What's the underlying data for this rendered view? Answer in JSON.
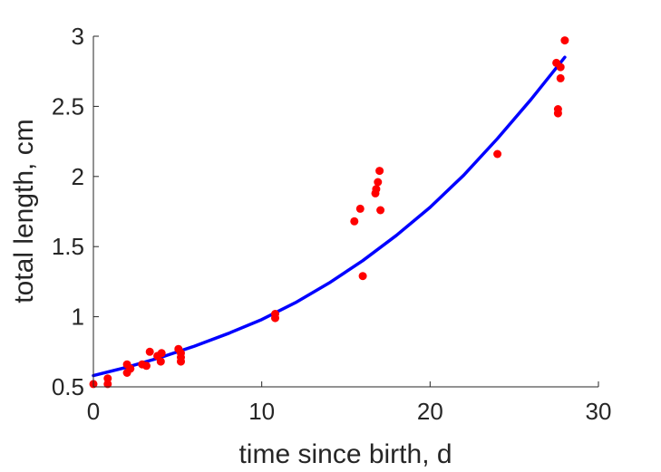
{
  "chart_data": {
    "type": "scatter",
    "title": "",
    "xlabel": "time since birth, d",
    "ylabel": "total length, cm",
    "xlim": [
      0,
      30
    ],
    "ylim": [
      0.5,
      3
    ],
    "xticks": [
      0,
      10,
      20,
      30
    ],
    "xtick_labels": [
      "0",
      "10",
      "20",
      "30"
    ],
    "yticks": [
      0.5,
      1,
      1.5,
      2,
      2.5,
      3
    ],
    "ytick_labels": [
      "0.5",
      "1",
      "1.5",
      "2",
      "2.5",
      "3"
    ],
    "grid": false,
    "legend": "none",
    "series": [
      {
        "kind": "scatter",
        "color": "#ff0000",
        "points": [
          [
            0.0,
            0.52
          ],
          [
            0.85,
            0.52
          ],
          [
            0.85,
            0.56
          ],
          [
            2.0,
            0.6
          ],
          [
            2.0,
            0.66
          ],
          [
            2.2,
            0.63
          ],
          [
            2.9,
            0.66
          ],
          [
            3.15,
            0.65
          ],
          [
            3.35,
            0.75
          ],
          [
            3.8,
            0.72
          ],
          [
            4.0,
            0.68
          ],
          [
            4.05,
            0.74
          ],
          [
            5.05,
            0.77
          ],
          [
            5.2,
            0.74
          ],
          [
            5.2,
            0.71
          ],
          [
            5.2,
            0.68
          ],
          [
            10.8,
            0.99
          ],
          [
            10.8,
            1.02
          ],
          [
            15.5,
            1.68
          ],
          [
            15.85,
            1.77
          ],
          [
            16.0,
            1.29
          ],
          [
            16.75,
            1.88
          ],
          [
            16.8,
            1.91
          ],
          [
            16.9,
            1.96
          ],
          [
            17.0,
            2.04
          ],
          [
            17.05,
            1.76
          ],
          [
            24.0,
            2.16
          ],
          [
            27.5,
            2.81
          ],
          [
            27.6,
            2.48
          ],
          [
            27.6,
            2.45
          ],
          [
            27.75,
            2.78
          ],
          [
            27.75,
            2.7
          ],
          [
            28.0,
            2.97
          ]
        ]
      },
      {
        "kind": "line",
        "color": "#0000ff",
        "x": [
          0,
          2,
          4,
          6,
          8,
          10,
          12,
          14,
          16,
          18,
          20,
          22,
          24,
          26,
          28
        ],
        "y": [
          0.58,
          0.64,
          0.71,
          0.79,
          0.88,
          0.98,
          1.1,
          1.24,
          1.4,
          1.58,
          1.78,
          2.01,
          2.27,
          2.55,
          2.85
        ]
      }
    ]
  }
}
